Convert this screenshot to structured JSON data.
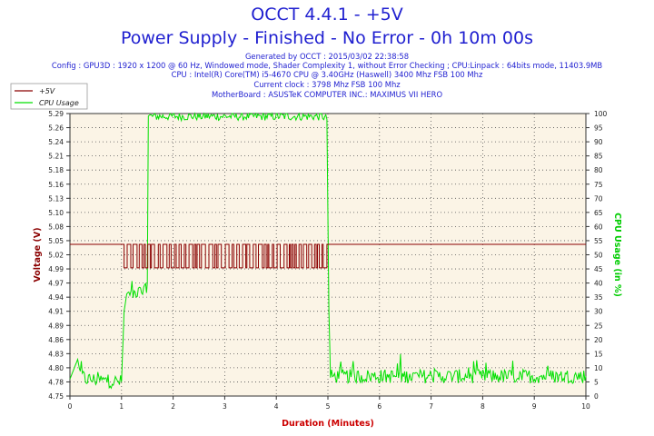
{
  "header": {
    "title": "OCCT 4.4.1 - +5V",
    "subtitle": "Power Supply - Finished - No Error - 0h 10m 00s",
    "info_lines": [
      "Generated by OCCT : 2015/03/02 22:38:58",
      "Config : GPU3D : 1920 x 1200 @ 60 Hz, Windowed mode, Shader Complexity 1, without Error Checking ; CPU:Linpack : 64bits mode, 11403.9MB",
      "CPU : Intel(R) Core(TM) i5-4670 CPU @ 3.40GHz (Haswell) 3400 Mhz FSB 100 Mhz",
      "Current clock : 3798 Mhz FSB 100 Mhz",
      "MotherBoard : ASUSTeK COMPUTER INC.: MAXIMUS VII HERO"
    ]
  },
  "colors": {
    "title": "#1f1fd0",
    "voltage": "#8b0000",
    "cpu": "#00e000",
    "plot_bg": "#fbf4e6",
    "axis_x_label": "#cc0000",
    "axis_y_left_label": "#8b0000",
    "axis_y_right_label": "#00cc00"
  },
  "chart_data": {
    "type": "line",
    "xlabel": "Duration (Minutes)",
    "ylabel": "Voltage (V)",
    "y2label": "CPU Usage (in %)",
    "xlim": [
      0,
      10
    ],
    "ylim": [
      4.75,
      5.29
    ],
    "y2lim": [
      0,
      100
    ],
    "x_ticks": [
      0,
      1,
      2,
      3,
      4,
      5,
      6,
      7,
      8,
      9,
      10
    ],
    "y_ticks": [
      "4.75",
      "4.78",
      "4.80",
      "4.83",
      "4.86",
      "4.89",
      "4.91",
      "4.94",
      "4.97",
      "4.99",
      "5.02",
      "5.05",
      "5.08",
      "5.10",
      "5.13",
      "5.16",
      "5.18",
      "5.21",
      "5.24",
      "5.26",
      "5.29"
    ],
    "y2_ticks": [
      0,
      5,
      10,
      15,
      20,
      25,
      30,
      35,
      40,
      45,
      50,
      55,
      60,
      65,
      70,
      75,
      80,
      85,
      90,
      95,
      100
    ],
    "grid": true,
    "legend_position": "top-left",
    "series": [
      {
        "name": "+5V",
        "axis": "left",
        "x": [
          0,
          1.0,
          1.05,
          1.1,
          1.5,
          1.55,
          5.0,
          5.02,
          10
        ],
        "y": [
          5.04,
          5.04,
          4.995,
          5.04,
          4.995,
          5.04,
          4.995,
          5.04,
          5.04
        ],
        "note_fluctuation": [
          1.05,
          5.0
        ]
      },
      {
        "name": "CPU Usage",
        "axis": "right",
        "x": [
          0,
          0.15,
          0.2,
          0.3,
          1.0,
          1.05,
          1.1,
          1.45,
          1.5,
          1.52,
          4.9,
          4.98,
          5.02,
          5.05,
          10
        ],
        "y": [
          6,
          13,
          8,
          6,
          5,
          30,
          36,
          37,
          40,
          99,
          99,
          98,
          30,
          7,
          7
        ]
      }
    ]
  }
}
